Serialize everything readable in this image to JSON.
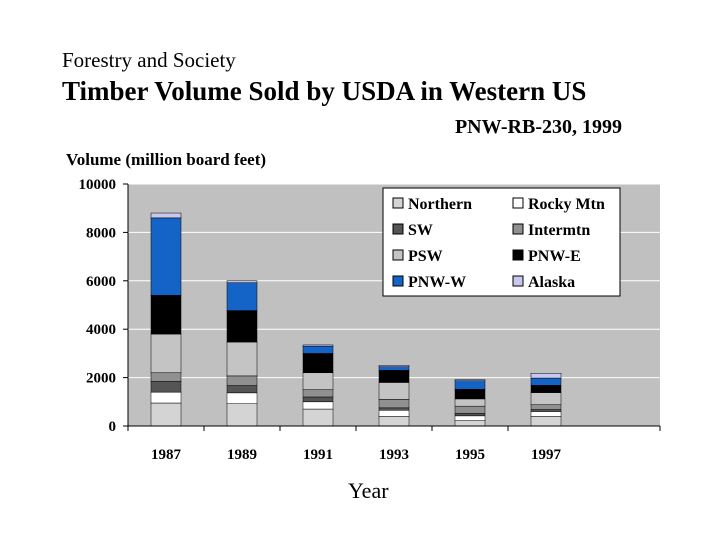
{
  "kicker": "Forestry and Society",
  "title": "Timber Volume Sold by USDA in Western US",
  "source": "PNW-RB-230, 1999",
  "chart_data": {
    "type": "bar",
    "stacked": true,
    "title": "Timber Volume Sold by USDA in Western US",
    "ylabel": "Volume (million board feet)",
    "xlabel": "Year",
    "ylim": [
      0,
      10000
    ],
    "yticks": [
      0,
      2000,
      4000,
      6000,
      8000,
      10000
    ],
    "categories": [
      "1987",
      "1989",
      "1991",
      "1993",
      "1995",
      "1997"
    ],
    "legend_position": "top-right",
    "series": [
      {
        "name": "Northern",
        "color": "#d4d4d4",
        "values": [
          950,
          920,
          700,
          400,
          220,
          400
        ]
      },
      {
        "name": "Rocky Mtn",
        "color": "#ffffff",
        "values": [
          450,
          450,
          300,
          250,
          200,
          200
        ]
      },
      {
        "name": "SW",
        "color": "#555555",
        "values": [
          450,
          300,
          200,
          100,
          100,
          80
        ]
      },
      {
        "name": "Intermtn",
        "color": "#909090",
        "values": [
          350,
          400,
          300,
          350,
          300,
          200
        ]
      },
      {
        "name": "PSW",
        "color": "#c4c4c4",
        "values": [
          1600,
          1400,
          700,
          700,
          300,
          500
        ]
      },
      {
        "name": "PNW-E",
        "color": "#000000",
        "values": [
          1600,
          1300,
          800,
          500,
          400,
          300
        ]
      },
      {
        "name": "PNW-W",
        "color": "#1464c8",
        "values": [
          3200,
          1150,
          300,
          150,
          350,
          300
        ]
      },
      {
        "name": "Alaska",
        "color": "#c8c8ee",
        "values": [
          200,
          80,
          50,
          60,
          50,
          200
        ]
      }
    ]
  }
}
